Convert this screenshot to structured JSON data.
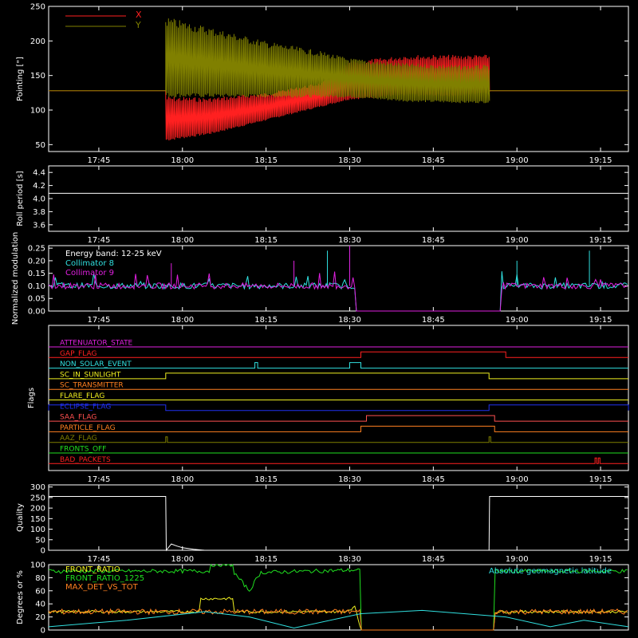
{
  "x_ticks": [
    "17:45",
    "18:00",
    "18:15",
    "18:30",
    "18:45",
    "19:00",
    "19:15"
  ],
  "colors": {
    "background": "#000000",
    "axes": "#ffffff",
    "red": "#ff2020",
    "olive": "#808000",
    "cyan": "#30e0e0",
    "magenta": "#e020e0",
    "green": "#20e020",
    "orange": "#ff8020",
    "yellow": "#f0f020",
    "blue": "#2030f0",
    "lightred": "#ff5050",
    "white": "#ffffff"
  },
  "chart_data": [
    {
      "id": "pointing",
      "type": "line",
      "ylabel": "Pointing [\"]",
      "yticks": [
        "50",
        "100",
        "150",
        "200",
        "250"
      ],
      "ylim": [
        40,
        250
      ],
      "xlim": [
        "17:36",
        "19:20"
      ],
      "legend": [
        "X",
        "Y"
      ],
      "series": [
        {
          "name": "X",
          "color": "#ff2020",
          "x": [
            "17:36",
            "17:56",
            "17:57",
            "18:05",
            "18:15",
            "18:25",
            "18:30",
            "18:40",
            "18:50",
            "18:55"
          ],
          "upper": [
            128,
            128,
            120,
            118,
            125,
            140,
            170,
            180,
            180,
            180
          ],
          "lower": [
            128,
            128,
            55,
            65,
            85,
            105,
            115,
            120,
            120,
            125
          ]
        },
        {
          "name": "Y",
          "color": "#808000",
          "x": [
            "17:36",
            "17:56",
            "17:57",
            "18:05",
            "18:15",
            "18:25",
            "18:30",
            "18:40",
            "18:50",
            "18:55"
          ],
          "upper": [
            128,
            128,
            235,
            220,
            200,
            185,
            175,
            168,
            165,
            165
          ],
          "lower": [
            128,
            128,
            118,
            118,
            118,
            118,
            118,
            112,
            110,
            110
          ]
        }
      ]
    },
    {
      "id": "roll",
      "type": "line",
      "ylabel": "Roll period [s]",
      "yticks": [
        "3.6",
        "3.8",
        "4.0",
        "4.2",
        "4.4"
      ],
      "ylim": [
        3.5,
        4.5
      ],
      "series": [
        {
          "name": "",
          "color": "#ffffff",
          "x": [
            "17:36",
            "19:20"
          ],
          "values": [
            4.08,
            4.08
          ]
        }
      ]
    },
    {
      "id": "modulation",
      "type": "line",
      "ylabel": "Normalized modulation",
      "yticks": [
        "0.00",
        "0.05",
        "0.10",
        "0.15",
        "0.20",
        "0.25"
      ],
      "ylim": [
        0,
        0.26
      ],
      "annotation": "Energy band: 12-25 keV",
      "series": [
        {
          "name": "Collimator 8",
          "color": "#30e0e0",
          "level": 0.1,
          "noise": 0.012,
          "active": [
            [
              "17:36",
              "18:31"
            ],
            [
              "18:57",
              "19:20"
            ]
          ],
          "spikes": [
            {
              "x": "18:30",
              "y": 0.25
            },
            {
              "x": "19:13",
              "y": 0.24
            },
            {
              "x": "18:26",
              "y": 0.24
            },
            {
              "x": "19:00",
              "y": 0.2
            }
          ]
        },
        {
          "name": "Collimator 9",
          "color": "#e020e0",
          "level": 0.1,
          "noise": 0.012,
          "active": [
            [
              "17:36",
              "18:31"
            ],
            [
              "18:57",
              "19:20"
            ]
          ],
          "spikes": [
            {
              "x": "18:30",
              "y": 0.26
            },
            {
              "x": "18:20",
              "y": 0.2
            },
            {
              "x": "17:58",
              "y": 0.19
            }
          ]
        }
      ]
    },
    {
      "id": "flags",
      "type": "step",
      "ylabel": "Flags",
      "series": [
        {
          "name": "ATTENUATOR_STATE",
          "color": "#e020e0",
          "steps": []
        },
        {
          "name": "GAP_FLAG",
          "color": "#ff2020",
          "steps": [
            [
              "18:32",
              "18:58"
            ]
          ]
        },
        {
          "name": "NON_SOLAR_EVENT",
          "color": "#30e0e0",
          "steps": [
            [
              "18:13",
              "18:13.5"
            ],
            [
              "18:30",
              "18:32"
            ]
          ]
        },
        {
          "name": "SC_IN_SUNLIGHT",
          "color": "#f0f020",
          "steps": [
            [
              "17:57",
              "18:55"
            ]
          ]
        },
        {
          "name": "SC_TRANSMITTER",
          "color": "#ff8020",
          "steps": []
        },
        {
          "name": "FLARE_FLAG",
          "color": "#f0f020",
          "steps": []
        },
        {
          "name": "ECLIPSE_FLAG",
          "color": "#2030f0",
          "steps": [
            [
              "17:36",
              "17:57"
            ],
            [
              "18:55",
              "19:20"
            ]
          ]
        },
        {
          "name": "SAA_FLAG",
          "color": "#ff5050",
          "steps": [
            [
              "18:33",
              "18:56"
            ]
          ]
        },
        {
          "name": "PARTICLE_FLAG",
          "color": "#ff8020",
          "steps": [
            [
              "18:32",
              "18:56"
            ]
          ]
        },
        {
          "name": "AAZ_FLAG",
          "color": "#808000",
          "steps": [
            [
              "17:57",
              "17:57.3"
            ],
            [
              "18:55",
              "18:55.3"
            ]
          ]
        },
        {
          "name": "FRONTS_OFF",
          "color": "#20e020",
          "steps": []
        },
        {
          "name": "BAD_PACKETS",
          "color": "#ff2020",
          "steps": [
            [
              "19:14",
              "19:14.3"
            ],
            [
              "19:14.6",
              "19:14.9"
            ]
          ]
        }
      ]
    },
    {
      "id": "quality",
      "type": "line",
      "ylabel": "Quality",
      "yticks": [
        "0",
        "50",
        "100",
        "150",
        "200",
        "250",
        "300"
      ],
      "ylim": [
        0,
        310
      ],
      "series": [
        {
          "name": "",
          "color": "#ffffff",
          "x": [
            "17:36",
            "17:57",
            "17:57.1",
            "17:58",
            "17:59",
            "18:00",
            "18:02",
            "18:04",
            "18:55",
            "18:55.1",
            "19:20"
          ],
          "values": [
            255,
            255,
            0,
            30,
            20,
            12,
            5,
            0,
            0,
            255,
            255
          ]
        }
      ]
    },
    {
      "id": "fronts",
      "type": "line",
      "ylabel": "Degrees or %",
      "yticks": [
        "0",
        "20",
        "40",
        "60",
        "80",
        "100"
      ],
      "ylim": [
        0,
        100
      ],
      "annotation": "Absolute geomagnetic latitude",
      "legend": [
        "FRONT_RATIO",
        "FRONT_RATIO_1225",
        "MAX_DET_VS_TOT"
      ],
      "series": [
        {
          "name": "FRONT_RATIO",
          "color": "#f0f020",
          "x": [
            "17:36",
            "18:03",
            "18:03",
            "18:09",
            "18:09",
            "18:29",
            "18:31",
            "18:32",
            "18:56",
            "18:56",
            "19:20"
          ],
          "values": [
            28,
            28,
            48,
            48,
            28,
            28,
            35,
            0,
            0,
            28,
            28
          ]
        },
        {
          "name": "FRONT_RATIO_1225",
          "color": "#20e020",
          "x": [
            "17:36",
            "18:05",
            "18:05",
            "18:09",
            "18:09",
            "18:12",
            "18:14",
            "18:32",
            "18:32",
            "18:56",
            "18:56",
            "19:20"
          ],
          "values": [
            90,
            90,
            100,
            100,
            90,
            60,
            88,
            92,
            0,
            0,
            90,
            90
          ]
        },
        {
          "name": "MAX_DET_VS_TOT",
          "color": "#ff8020",
          "x": [
            "17:36",
            "18:32",
            "18:32",
            "18:56",
            "18:56",
            "19:20"
          ],
          "values": [
            28,
            28,
            0,
            0,
            28,
            28
          ]
        },
        {
          "name": "Absolute geomagnetic latitude",
          "color": "#30e0e0",
          "x": [
            "17:36",
            "17:50",
            "18:04",
            "18:12",
            "18:20",
            "18:32",
            "18:43",
            "18:58",
            "19:06",
            "19:12",
            "19:20"
          ],
          "values": [
            5,
            15,
            28,
            20,
            3,
            25,
            30,
            20,
            5,
            15,
            5
          ]
        }
      ]
    }
  ]
}
